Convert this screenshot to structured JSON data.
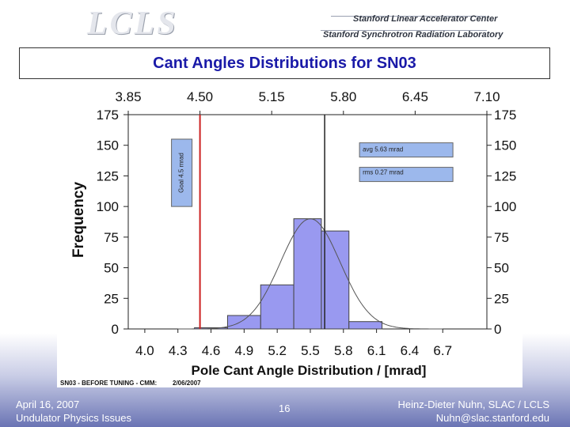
{
  "header": {
    "logo_text": "LCLS",
    "org_line1": "Stanford Linear Accelerator Center",
    "org_line2": "Stanford Synchrotron Radiation Laboratory"
  },
  "slide_title": "Cant Angles Distributions for SN03",
  "footer": {
    "date": "April 16, 2007",
    "event": "Undulator Physics Issues",
    "page": "16",
    "author": "Heinz-Dieter Nuhn, SLAC / LCLS",
    "email": "Nuhn@slac.stanford.edu"
  },
  "colors": {
    "bar_fill": "#9999f0",
    "goal_line": "#cc2222",
    "avg_line": "#222222",
    "title_color": "#1a1aa8"
  },
  "chart_data": {
    "type": "bar",
    "xlabel": "Pole Cant Angle Distribution / [mrad]",
    "ylabel": "Frequency",
    "xlim": [
      3.85,
      7.1
    ],
    "ylim": [
      0,
      175
    ],
    "bottom_ticks": [
      "4.0",
      "4.3",
      "4.6",
      "4.9",
      "5.2",
      "5.5",
      "5.8",
      "6.1",
      "6.4",
      "6.7"
    ],
    "bottom_tick_values": [
      4.0,
      4.3,
      4.6,
      4.9,
      5.2,
      5.5,
      5.8,
      6.1,
      6.4,
      6.7
    ],
    "top_ticks": [
      "3.85",
      "4.50",
      "5.15",
      "5.80",
      "6.45",
      "7.10"
    ],
    "top_tick_values": [
      3.85,
      4.5,
      5.15,
      5.8,
      6.45,
      7.1
    ],
    "y_ticks": [
      0,
      25,
      50,
      75,
      100,
      125,
      150,
      175
    ],
    "bin_edges": [
      4.45,
      4.75,
      5.05,
      5.35,
      5.6,
      5.85,
      6.15
    ],
    "values": [
      1,
      11,
      36,
      90,
      80,
      6
    ],
    "goal_value": 4.5,
    "goal_label": "Goal 4.5 mrad",
    "goal_box_range": [
      100,
      155
    ],
    "avg_value": 5.63,
    "avg_label": "avg 5.63 mrad",
    "rms_label": "rms 0.27 mrad",
    "gauss_mean": 5.5,
    "gauss_sigma": 0.27,
    "gauss_peak": 90,
    "footnote": "SN03 - BEFORE TUNING - CMM:",
    "footnote_date": "2/06/2007"
  }
}
